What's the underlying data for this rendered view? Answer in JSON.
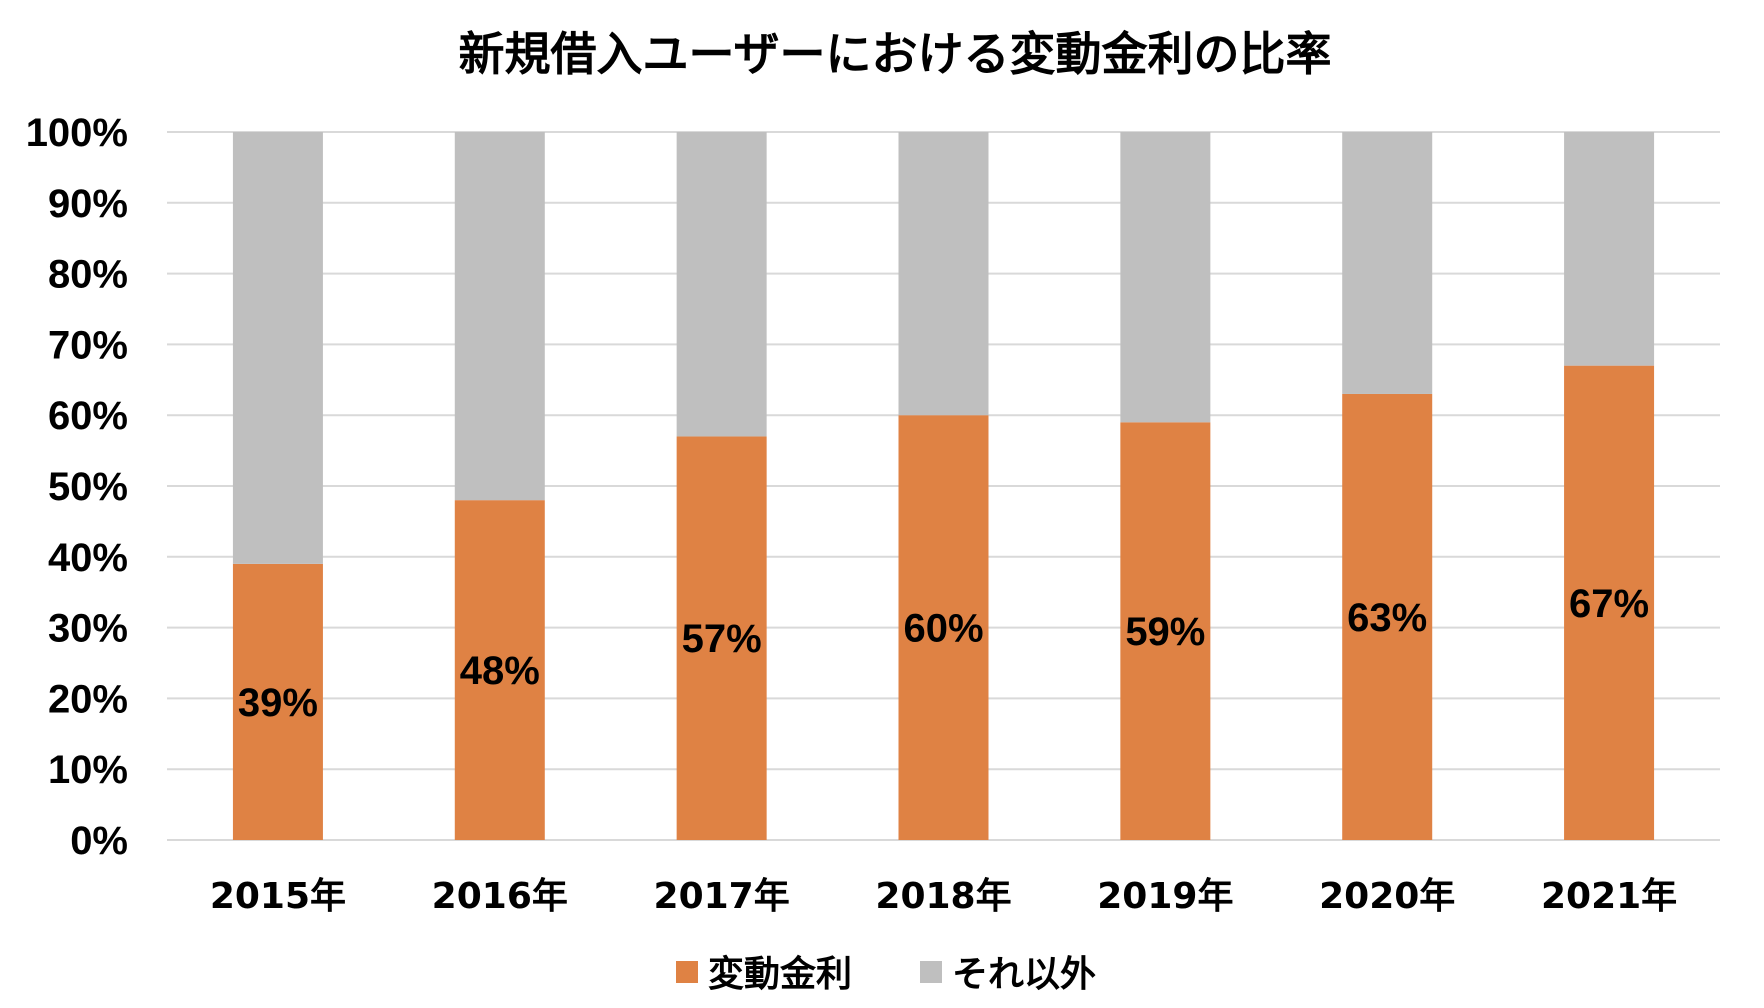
{
  "chart_data": {
    "type": "bar",
    "stacked": true,
    "title": "新規借入ユーザーにおける変動金利の比率",
    "categories": [
      "2015年",
      "2016年",
      "2017年",
      "2018年",
      "2019年",
      "2020年",
      "2021年"
    ],
    "series": [
      {
        "name": "変動金利",
        "color": "#DF8244",
        "values": [
          39,
          48,
          57,
          60,
          59,
          63,
          67
        ],
        "labels": [
          "39%",
          "48%",
          "57%",
          "60%",
          "59%",
          "63%",
          "67%"
        ]
      },
      {
        "name": "それ以外",
        "color": "#BFBFBF",
        "values": [
          61,
          52,
          43,
          40,
          41,
          37,
          33
        ]
      }
    ],
    "ylim": [
      0,
      100
    ],
    "yticks": [
      "0%",
      "10%",
      "20%",
      "30%",
      "40%",
      "50%",
      "60%",
      "70%",
      "80%",
      "90%",
      "100%"
    ],
    "xlabel": "",
    "ylabel": "",
    "grid": true,
    "gridline_color": "#D9D9D9",
    "legend": "bottom"
  }
}
